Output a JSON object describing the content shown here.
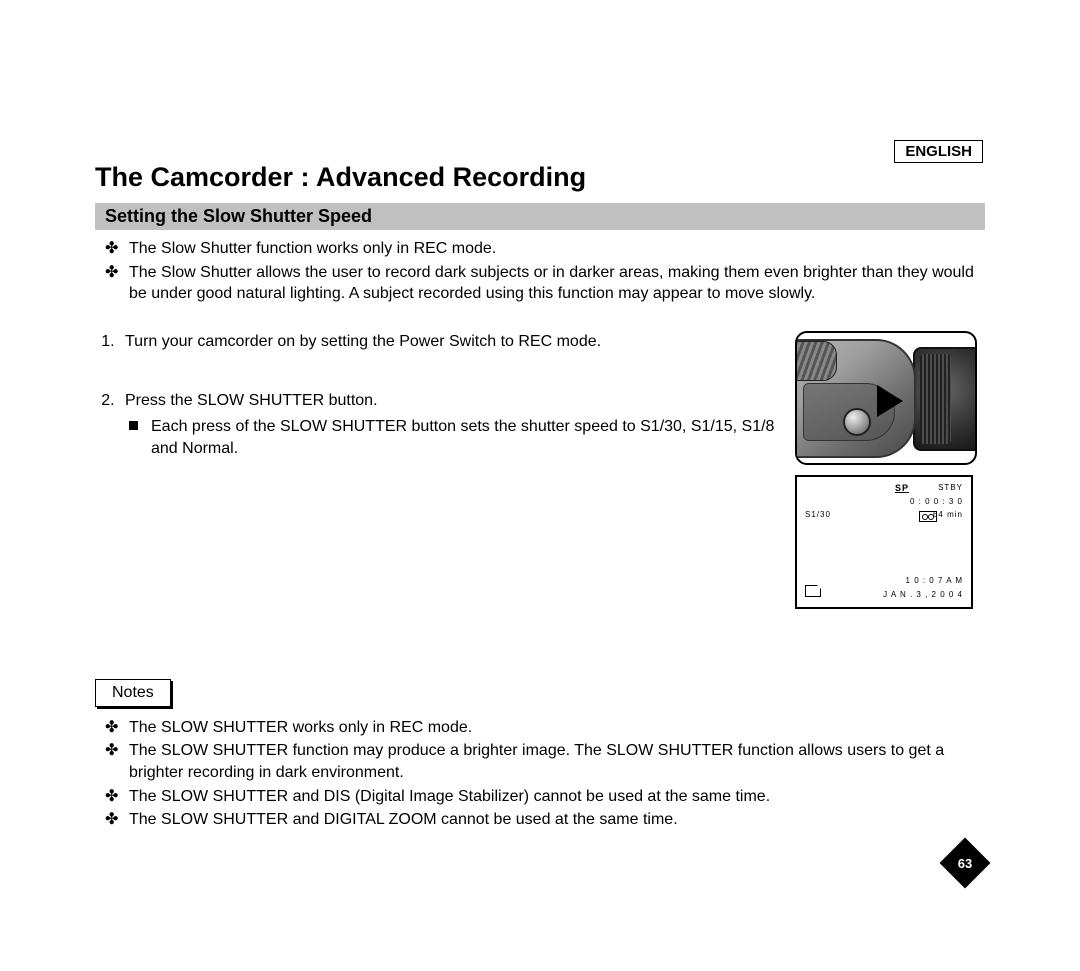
{
  "language": "ENGLISH",
  "page_title": "The Camcorder : Advanced Recording",
  "section_heading": "Setting the Slow Shutter Speed",
  "intro_bullets": [
    "The Slow Shutter function works only in REC mode.",
    "The Slow Shutter allows the user to record dark subjects or in darker areas, making them even brighter than they would be under good natural lighting. A subject recorded using this function may appear to move slowly."
  ],
  "steps": {
    "s1": "Turn your camcorder on by setting the Power Switch to REC mode.",
    "s2": "Press the SLOW SHUTTER button.",
    "s2_sub": "Each press of the SLOW SHUTTER button sets the shutter speed to S1/30, S1/15, S1/8 and Normal."
  },
  "notes_label": "Notes",
  "notes": [
    "The SLOW SHUTTER works only in REC mode.",
    "The SLOW SHUTTER function may produce a brighter image. The SLOW SHUTTER function allows users to get a brighter recording in dark environment.",
    "The SLOW SHUTTER and DIS (Digital Image Stabilizer) cannot be used at the same time.",
    "The SLOW SHUTTER and DIGITAL ZOOM cannot be used at the same time."
  ],
  "lcd": {
    "sp": "SP",
    "stby": "STBY",
    "counter": "0 : 0 0 : 3 0",
    "remaining": "64 min",
    "shutter": "S1/30",
    "clock": "1 0 : 0 7  A M",
    "date": "J A N . 3 , 2 0 0 4"
  },
  "page_number": "63",
  "colors": {
    "section_bar_bg": "#c0c0c0",
    "text": "#000000",
    "page_bg": "#ffffff"
  }
}
